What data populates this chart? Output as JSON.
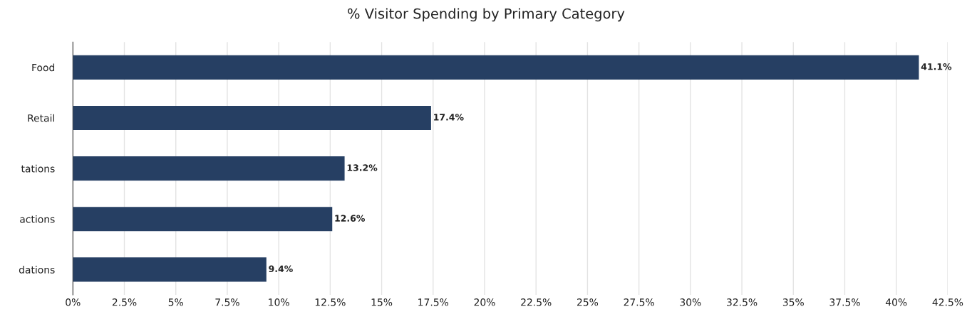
{
  "chart_data": {
    "type": "bar",
    "orientation": "horizontal",
    "title": "% Visitor Spending by Primary Category",
    "categories": [
      "Food",
      "Retail",
      "tations",
      "actions",
      "dations"
    ],
    "values": [
      41.1,
      17.4,
      13.2,
      12.6,
      9.4
    ],
    "value_labels": [
      "41.1%",
      "17.4%",
      "13.2%",
      "12.6%",
      "9.4%"
    ],
    "color": "#263f63",
    "xlim": [
      0,
      42.5
    ],
    "xticks": [
      {
        "value": 0,
        "label": "0%"
      },
      {
        "value": 2.5,
        "label": "2.5%"
      },
      {
        "value": 5,
        "label": "5%"
      },
      {
        "value": 7.5,
        "label": "7.5%"
      },
      {
        "value": 10,
        "label": "10%"
      },
      {
        "value": 12.5,
        "label": "12.5%"
      },
      {
        "value": 15,
        "label": "15%"
      },
      {
        "value": 17.5,
        "label": "17.5%"
      },
      {
        "value": 20,
        "label": "20%"
      },
      {
        "value": 22.5,
        "label": "22.5%"
      },
      {
        "value": 25,
        "label": "25%"
      },
      {
        "value": 27.5,
        "label": "27.5%"
      },
      {
        "value": 30,
        "label": "30%"
      },
      {
        "value": 32.5,
        "label": "32.5%"
      },
      {
        "value": 35,
        "label": "35%"
      },
      {
        "value": 37.5,
        "label": "37.5%"
      },
      {
        "value": 40,
        "label": "40%"
      },
      {
        "value": 42.5,
        "label": "42.5%"
      }
    ],
    "grid": "x"
  }
}
